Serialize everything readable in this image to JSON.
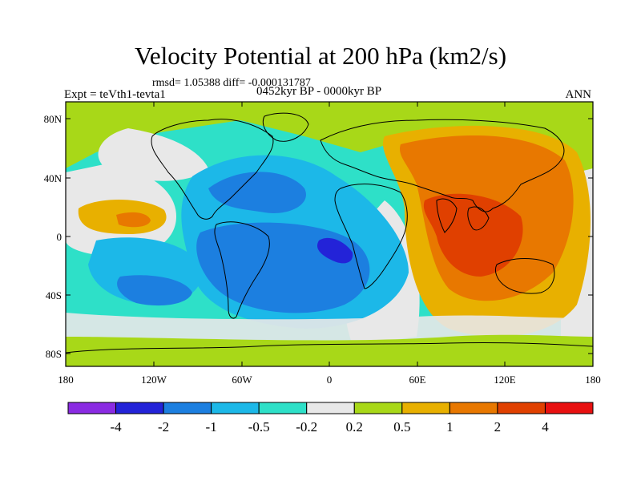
{
  "header": {
    "title": "Velocity Potential at 200 hPa (km2/s)",
    "stats": "rmsd= 1.05388 diff= -0.000131787",
    "experiment": "Expt = teVth1-tevta1",
    "period": "0452kyr BP - 0000kyr BP",
    "season": "ANN"
  },
  "axes": {
    "lat_ticks": [
      "80N",
      "40N",
      "0",
      "40S",
      "80S"
    ],
    "lon_ticks": [
      "180",
      "120W",
      "60W",
      "0",
      "60E",
      "120E",
      "180"
    ]
  },
  "colorbar": {
    "labels": [
      "-4",
      "-2",
      "-1",
      "-0.5",
      "-0.2",
      "0.2",
      "0.5",
      "1",
      "2",
      "4"
    ],
    "colors": [
      "#8a2be2",
      "#2323d8",
      "#1c7fe0",
      "#1cb8e8",
      "#2ee0c8",
      "#e8e8e8",
      "#a8d818",
      "#e8b000",
      "#e87800",
      "#e04000",
      "#e81010"
    ]
  },
  "map_colors": {
    "ocean_outline": "#000000",
    "background_field": "#2ee0c8"
  }
}
